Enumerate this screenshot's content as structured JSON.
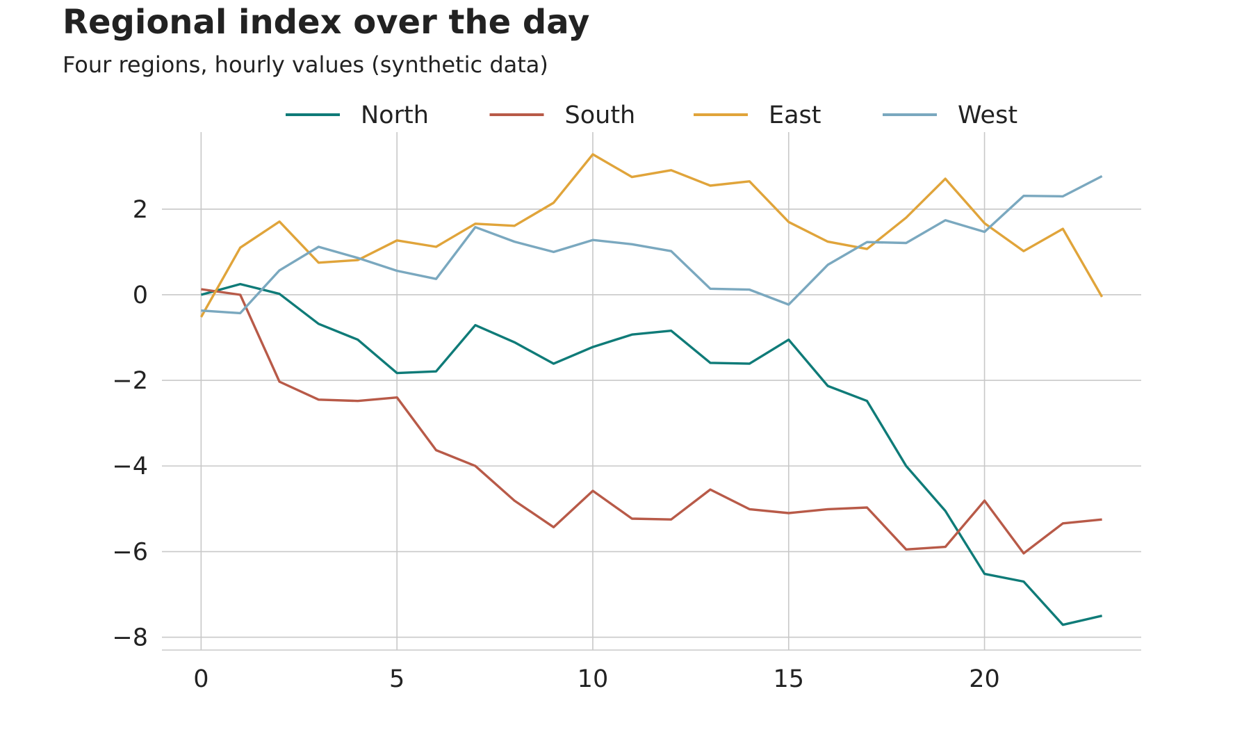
{
  "chart_data": {
    "type": "line",
    "title": "Regional index over the day",
    "subtitle": "Four regions, hourly values (synthetic data)",
    "xlabel": "",
    "ylabel": "",
    "xlim": [
      -1,
      24
    ],
    "ylim": [
      -8.3,
      3.8
    ],
    "xticks": [
      0,
      5,
      10,
      15,
      20
    ],
    "yticks": [
      2,
      0,
      -2,
      -4,
      -6,
      -8
    ],
    "ytick_labels": [
      "2",
      "0",
      "−2",
      "−4",
      "−6",
      "−8"
    ],
    "grid": true,
    "legend_position": "top-center",
    "x": [
      0,
      1,
      2,
      3,
      4,
      5,
      6,
      7,
      8,
      9,
      10,
      11,
      12,
      13,
      14,
      15,
      16,
      17,
      18,
      19,
      20,
      21,
      22,
      23
    ],
    "series": [
      {
        "name": "North",
        "color": "#0f7b78",
        "values": [
          0.0,
          0.25,
          0.02,
          -0.68,
          -1.05,
          -1.83,
          -1.79,
          -0.71,
          -1.11,
          -1.61,
          -1.22,
          -0.93,
          -0.84,
          -1.59,
          -1.61,
          -1.05,
          -2.13,
          -2.48,
          -4.0,
          -5.05,
          -6.52,
          -6.7,
          -7.71,
          -7.5
        ]
      },
      {
        "name": "South",
        "color": "#b85a48",
        "values": [
          0.13,
          0.0,
          -2.03,
          -2.45,
          -2.48,
          -2.4,
          -3.63,
          -4.0,
          -4.81,
          -5.43,
          -4.58,
          -5.23,
          -5.25,
          -4.55,
          -5.01,
          -5.1,
          -5.01,
          -4.97,
          -5.95,
          -5.89,
          -4.81,
          -6.04,
          -5.34,
          -5.25
        ]
      },
      {
        "name": "East",
        "color": "#e0a43a",
        "values": [
          -0.52,
          1.1,
          1.71,
          0.75,
          0.81,
          1.27,
          1.12,
          1.66,
          1.61,
          2.15,
          3.28,
          2.75,
          2.91,
          2.55,
          2.65,
          1.7,
          1.24,
          1.07,
          1.8,
          2.71,
          1.67,
          1.02,
          1.54,
          -0.05
        ]
      },
      {
        "name": "West",
        "color": "#7aa8bf",
        "values": [
          -0.37,
          -0.43,
          0.57,
          1.12,
          0.86,
          0.56,
          0.37,
          1.58,
          1.24,
          1.0,
          1.28,
          1.18,
          1.02,
          0.14,
          0.12,
          -0.23,
          0.7,
          1.23,
          1.21,
          1.74,
          1.47,
          2.31,
          2.3,
          2.77
        ]
      }
    ]
  }
}
